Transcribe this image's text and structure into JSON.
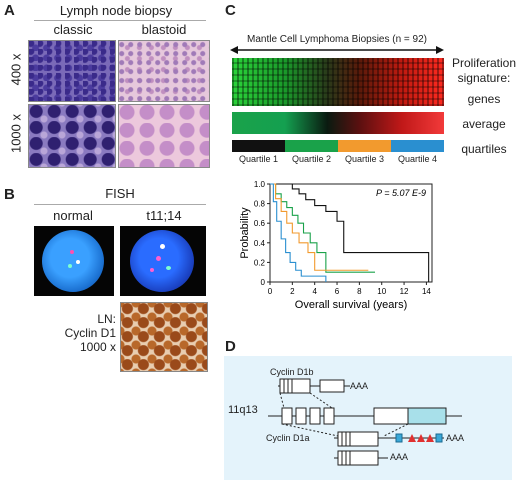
{
  "panelA": {
    "letter": "A",
    "title": "Lymph node biopsy",
    "col_classic": "classic",
    "col_blastoid": "blastoid",
    "row_400": "400 x",
    "row_1000": "1000 x"
  },
  "panelB": {
    "letter": "B",
    "title": "FISH",
    "col_normal": "normal",
    "col_t1114": "t11;14",
    "ln_line1": "LN:",
    "ln_line2": "Cyclin D1",
    "ln_line3": "1000 x"
  },
  "panelC": {
    "letter": "C",
    "heatmap_title": "Mantle Cell Lymphoma Biopsies (n = 92)",
    "label_prolif1": "Proliferation",
    "label_prolif2": "signature:",
    "label_genes": "genes",
    "label_average": "average",
    "label_quartiles": "quartiles",
    "quartiles": [
      {
        "label": "Quartile 1",
        "color": "#111111"
      },
      {
        "label": "Quartile 2",
        "color": "#1aa24a"
      },
      {
        "label": "Quartile 3",
        "color": "#f29a2e"
      },
      {
        "label": "Quartile 4",
        "color": "#2a8fd0"
      }
    ]
  },
  "chart_data": {
    "type": "line",
    "xlabel": "Overall survival (years)",
    "ylabel": "Probability",
    "annotation": "P = 5.07 E-9",
    "xticks": [
      "0",
      "2",
      "4",
      "6",
      "8",
      "10",
      "12",
      "14"
    ],
    "yticks": [
      "0",
      "0.2",
      "0.4",
      "0.6",
      "0.8",
      "1.0"
    ],
    "xlim": [
      0,
      14.5
    ],
    "ylim": [
      0,
      1.0
    ],
    "series": [
      {
        "color": "#111111",
        "x": [
          0,
          1.5,
          2.0,
          2.6,
          3.2,
          4.0,
          5.0,
          6.0,
          6.6,
          10.8,
          13.8,
          14.2
        ],
        "y": [
          1.0,
          1.0,
          0.95,
          0.9,
          0.84,
          0.78,
          0.72,
          0.62,
          0.3,
          0.3,
          0.3,
          0.0
        ]
      },
      {
        "color": "#1aa24a",
        "x": [
          0,
          0.5,
          1.0,
          1.5,
          2.0,
          2.5,
          3.0,
          3.6,
          4.2,
          5.0,
          9.4
        ],
        "y": [
          1.0,
          0.9,
          0.82,
          0.76,
          0.68,
          0.6,
          0.5,
          0.4,
          0.3,
          0.1,
          0.1
        ]
      },
      {
        "color": "#f29a2e",
        "x": [
          0,
          0.5,
          1.0,
          1.5,
          2.0,
          2.6,
          3.4,
          4.0,
          8.8
        ],
        "y": [
          1.0,
          0.85,
          0.72,
          0.6,
          0.5,
          0.4,
          0.3,
          0.12,
          0.12
        ]
      },
      {
        "color": "#2a8fd0",
        "x": [
          0,
          0.3,
          0.6,
          1.0,
          1.4,
          1.8,
          2.3,
          2.8,
          5.0
        ],
        "y": [
          1.0,
          0.82,
          0.62,
          0.44,
          0.3,
          0.2,
          0.12,
          0.06,
          0.0
        ]
      }
    ]
  },
  "panelD": {
    "letter": "D",
    "cyclin_d1b": "Cyclin D1b",
    "cyclin_d1a": "Cyclin D1a",
    "locus": "11q13",
    "polyA1": "AAA",
    "polyA2": "AAA",
    "polyA3": "AAA"
  }
}
